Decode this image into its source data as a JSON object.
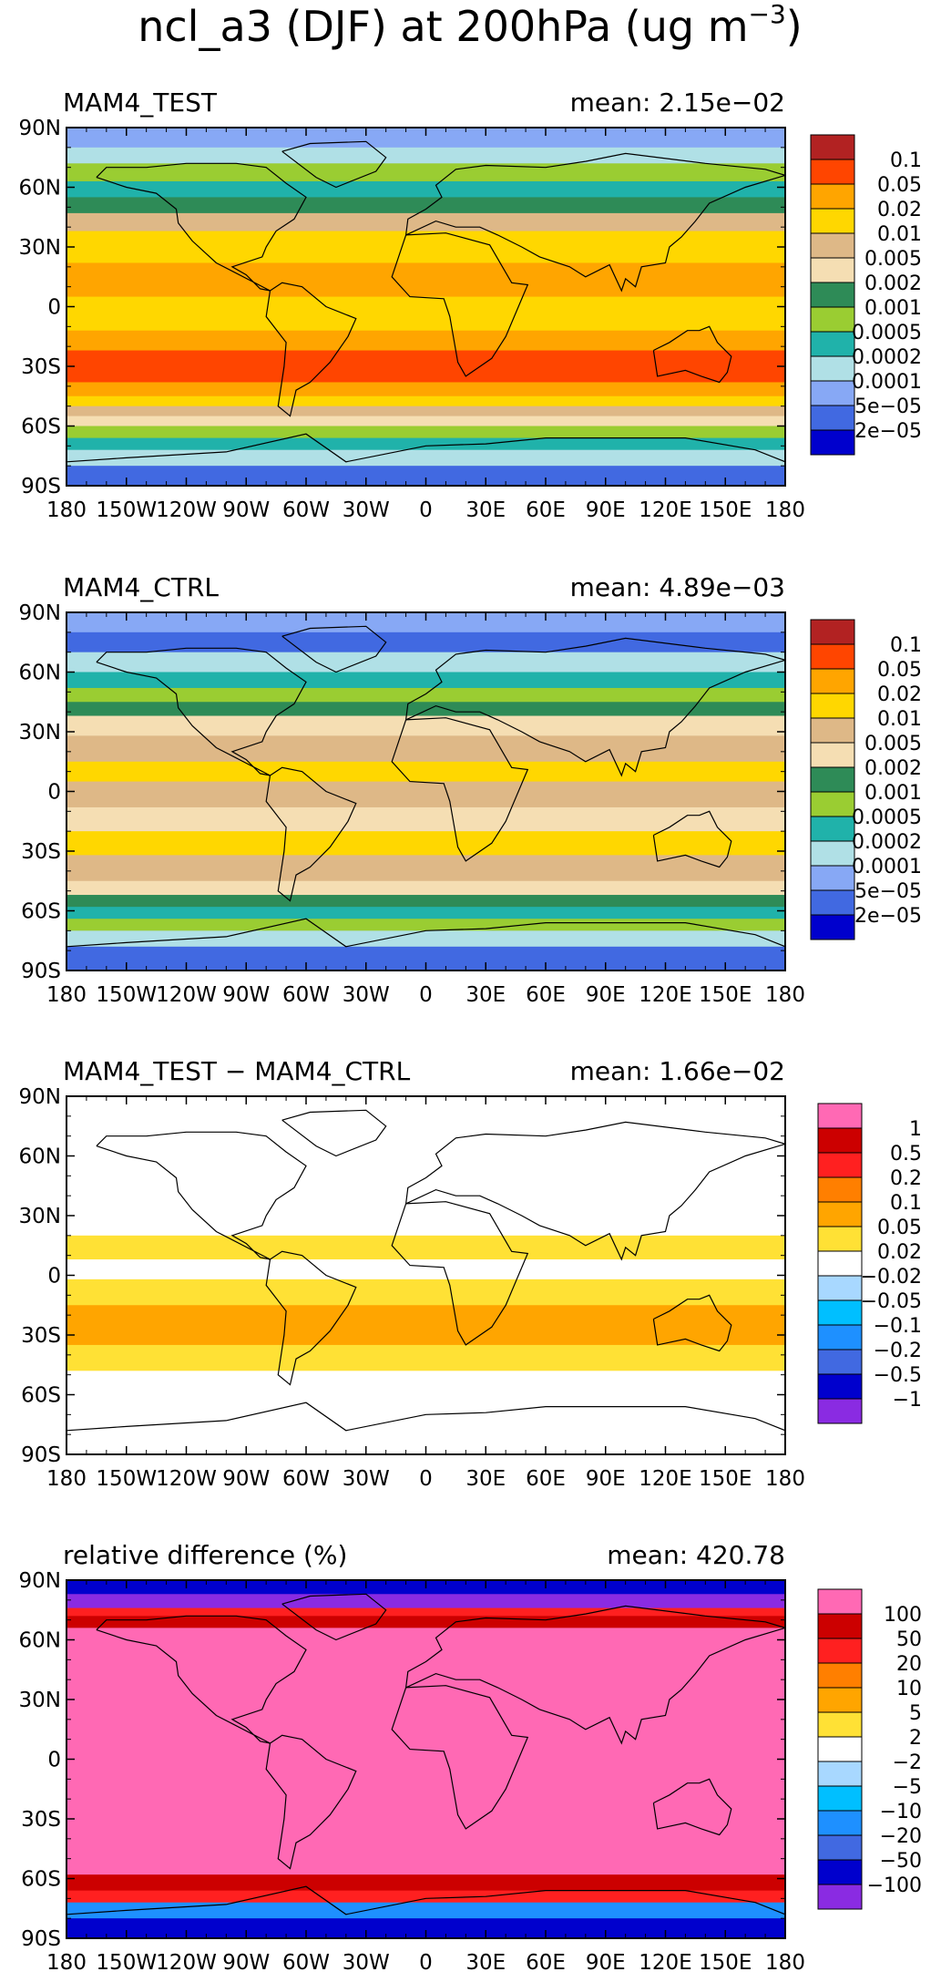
{
  "figure": {
    "title": "ncl_a3 (DJF) at 200hPa (ug m",
    "title_sup": "−3",
    "title_close": ")"
  },
  "chart_data": [
    {
      "type": "heatmap",
      "title": "MAM4_TEST",
      "mean_label": "mean: 2.15e−02",
      "xlim": [
        -180,
        180
      ],
      "ylim": [
        -90,
        90
      ],
      "x_ticks": [
        "180",
        "150W",
        "120W",
        "90W",
        "60W",
        "30W",
        "0",
        "30E",
        "60E",
        "90E",
        "120E",
        "150E",
        "180"
      ],
      "y_ticks": [
        "90N",
        "60N",
        "30N",
        "0",
        "30S",
        "60S",
        "90S"
      ],
      "legend": [
        "0.1",
        "0.05",
        "0.02",
        "0.01",
        "0.005",
        "0.002",
        "0.001",
        "0.0005",
        "0.0002",
        "0.0001",
        "5e−05",
        "2e−05"
      ],
      "colors": [
        "#B22222",
        "#FF4500",
        "#FFA500",
        "#FFD700",
        "#DEB887",
        "#F5DEB3",
        "#2E8B57",
        "#9ACD32",
        "#20B2AA",
        "#B0E0E6",
        "#87A8F5",
        "#4169E1",
        "#0000CD"
      ],
      "bands": [
        {
          "lat": 90,
          "c": 10
        },
        {
          "lat": 80,
          "c": 9
        },
        {
          "lat": 72,
          "c": 7
        },
        {
          "lat": 63,
          "c": 8
        },
        {
          "lat": 55,
          "c": 6
        },
        {
          "lat": 47,
          "c": 4
        },
        {
          "lat": 38,
          "c": 3
        },
        {
          "lat": 22,
          "c": 2
        },
        {
          "lat": 5,
          "c": 3
        },
        {
          "lat": -12,
          "c": 2
        },
        {
          "lat": -22,
          "c": 1
        },
        {
          "lat": -38,
          "c": 2
        },
        {
          "lat": -45,
          "c": 3
        },
        {
          "lat": -50,
          "c": 4
        },
        {
          "lat": -55,
          "c": 5
        },
        {
          "lat": -60,
          "c": 7
        },
        {
          "lat": -66,
          "c": 8
        },
        {
          "lat": -72,
          "c": 9
        },
        {
          "lat": -80,
          "c": 11
        },
        {
          "lat": -90,
          "c": 11
        }
      ]
    },
    {
      "type": "heatmap",
      "title": "MAM4_CTRL",
      "mean_label": "mean: 4.89e−03",
      "xlim": [
        -180,
        180
      ],
      "ylim": [
        -90,
        90
      ],
      "x_ticks": [
        "180",
        "150W",
        "120W",
        "90W",
        "60W",
        "30W",
        "0",
        "30E",
        "60E",
        "90E",
        "120E",
        "150E",
        "180"
      ],
      "y_ticks": [
        "90N",
        "60N",
        "30N",
        "0",
        "30S",
        "60S",
        "90S"
      ],
      "legend": [
        "0.1",
        "0.05",
        "0.02",
        "0.01",
        "0.005",
        "0.002",
        "0.001",
        "0.0005",
        "0.0002",
        "0.0001",
        "5e−05",
        "2e−05"
      ],
      "colors": [
        "#B22222",
        "#FF4500",
        "#FFA500",
        "#FFD700",
        "#DEB887",
        "#F5DEB3",
        "#2E8B57",
        "#9ACD32",
        "#20B2AA",
        "#B0E0E6",
        "#87A8F5",
        "#4169E1",
        "#0000CD"
      ],
      "bands": [
        {
          "lat": 90,
          "c": 10
        },
        {
          "lat": 80,
          "c": 11
        },
        {
          "lat": 70,
          "c": 9
        },
        {
          "lat": 60,
          "c": 8
        },
        {
          "lat": 52,
          "c": 7
        },
        {
          "lat": 45,
          "c": 6
        },
        {
          "lat": 38,
          "c": 5
        },
        {
          "lat": 28,
          "c": 4
        },
        {
          "lat": 15,
          "c": 3
        },
        {
          "lat": 5,
          "c": 4
        },
        {
          "lat": -8,
          "c": 5
        },
        {
          "lat": -20,
          "c": 3
        },
        {
          "lat": -32,
          "c": 4
        },
        {
          "lat": -45,
          "c": 5
        },
        {
          "lat": -52,
          "c": 6
        },
        {
          "lat": -58,
          "c": 8
        },
        {
          "lat": -64,
          "c": 7
        },
        {
          "lat": -70,
          "c": 9
        },
        {
          "lat": -78,
          "c": 11
        },
        {
          "lat": -90,
          "c": 12
        }
      ]
    },
    {
      "type": "heatmap",
      "title": "MAM4_TEST − MAM4_CTRL",
      "mean_label": "mean: 1.66e−02",
      "xlim": [
        -180,
        180
      ],
      "ylim": [
        -90,
        90
      ],
      "x_ticks": [
        "180",
        "150W",
        "120W",
        "90W",
        "60W",
        "30W",
        "0",
        "30E",
        "60E",
        "90E",
        "120E",
        "150E",
        "180"
      ],
      "y_ticks": [
        "90N",
        "60N",
        "30N",
        "0",
        "30S",
        "60S",
        "90S"
      ],
      "legend": [
        "1",
        "0.5",
        "0.2",
        "0.1",
        "0.05",
        "0.02",
        "−0.02",
        "−0.05",
        "−0.1",
        "−0.2",
        "−0.5",
        "−1"
      ],
      "colors": [
        "#FF69B4",
        "#CC0000",
        "#FF2020",
        "#FF7F00",
        "#FFA500",
        "#FFE135",
        "#FFFFFF",
        "#A8D8FF",
        "#00BFFF",
        "#1E90FF",
        "#4169E1",
        "#0000CD",
        "#8A2BE2"
      ],
      "bands": [
        {
          "lat": 90,
          "c": 6
        },
        {
          "lat": 30,
          "c": 6
        },
        {
          "lat": 20,
          "c": 5
        },
        {
          "lat": 8,
          "c": 6
        },
        {
          "lat": -2,
          "c": 5
        },
        {
          "lat": -15,
          "c": 4
        },
        {
          "lat": -35,
          "c": 5
        },
        {
          "lat": -48,
          "c": 6
        },
        {
          "lat": -90,
          "c": 6
        }
      ]
    },
    {
      "type": "heatmap",
      "title": "relative difference (%)",
      "mean_label": "mean: 420.78",
      "xlim": [
        -180,
        180
      ],
      "ylim": [
        -90,
        90
      ],
      "x_ticks": [
        "180",
        "150W",
        "120W",
        "90W",
        "60W",
        "30W",
        "0",
        "30E",
        "60E",
        "90E",
        "120E",
        "150E",
        "180"
      ],
      "y_ticks": [
        "90N",
        "60N",
        "30N",
        "0",
        "30S",
        "60S",
        "90S"
      ],
      "legend": [
        "100",
        "50",
        "20",
        "10",
        "5",
        "2",
        "−2",
        "−5",
        "−10",
        "−20",
        "−50",
        "−100"
      ],
      "colors": [
        "#FF69B4",
        "#CC0000",
        "#FF2020",
        "#FF7F00",
        "#FFA500",
        "#FFE135",
        "#FFFFFF",
        "#A8D8FF",
        "#00BFFF",
        "#1E90FF",
        "#4169E1",
        "#0000CD",
        "#8A2BE2"
      ],
      "bands": [
        {
          "lat": 90,
          "c": 11
        },
        {
          "lat": 83,
          "c": 12
        },
        {
          "lat": 76,
          "c": 2
        },
        {
          "lat": 72,
          "c": 1
        },
        {
          "lat": 66,
          "c": 0
        },
        {
          "lat": -58,
          "c": 1
        },
        {
          "lat": -66,
          "c": 2
        },
        {
          "lat": -72,
          "c": 9
        },
        {
          "lat": -80,
          "c": 11
        },
        {
          "lat": -90,
          "c": 11
        }
      ]
    }
  ]
}
